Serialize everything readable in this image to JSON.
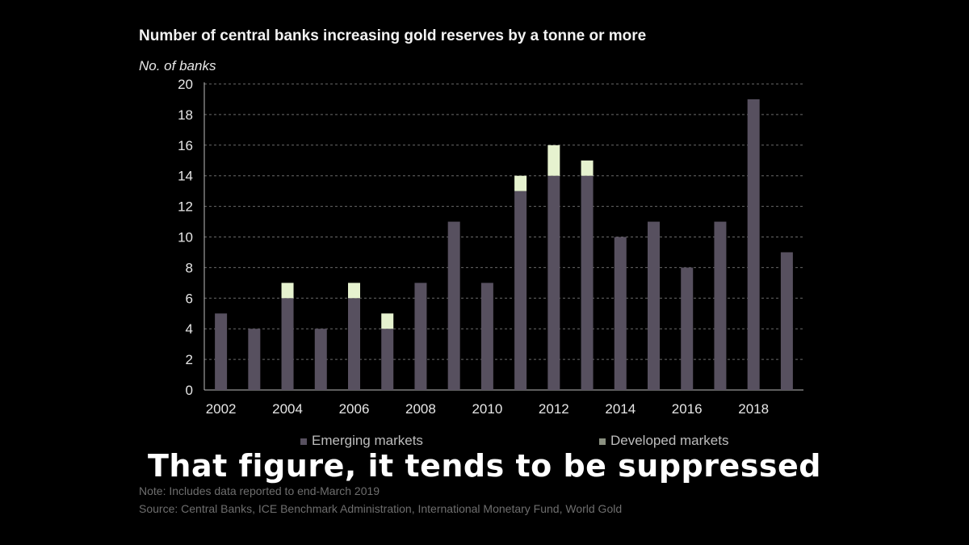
{
  "chart_data": {
    "type": "bar",
    "stacked": true,
    "title": "Number of central banks increasing gold reserves by a tonne or more",
    "ylabel": "No. of banks",
    "xlabel": "",
    "ylim": [
      0,
      20
    ],
    "yticks": [
      0,
      2,
      4,
      6,
      8,
      10,
      12,
      14,
      16,
      18,
      20
    ],
    "grid": true,
    "legend_position": "bottom",
    "categories": [
      "2002",
      "2003",
      "2004",
      "2005",
      "2006",
      "2007",
      "2008",
      "2009",
      "2010",
      "2011",
      "2012",
      "2013",
      "2014",
      "2015",
      "2016",
      "2017",
      "2018",
      "2019"
    ],
    "xtick_labels": [
      "2002",
      "2004",
      "2006",
      "2008",
      "2010",
      "2012",
      "2014",
      "2016",
      "2018"
    ],
    "series": [
      {
        "name": "Emerging markets",
        "color": "#57505f",
        "values": [
          5,
          4,
          6,
          4,
          6,
          4,
          7,
          11,
          7,
          13,
          14,
          14,
          10,
          11,
          8,
          11,
          19,
          9
        ]
      },
      {
        "name": "Developed markets",
        "color": "#e6f2cf",
        "values": [
          0,
          0,
          1,
          0,
          1,
          1,
          0,
          0,
          0,
          1,
          2,
          1,
          0,
          0,
          0,
          0,
          0,
          0
        ]
      }
    ]
  },
  "notes": {
    "note": "Note: Includes data reported to end-March 2019",
    "source": "Source: Central Banks, ICE Benchmark Administration, International Monetary Fund, World Gold"
  },
  "caption": "That figure, it tends to be suppressed"
}
